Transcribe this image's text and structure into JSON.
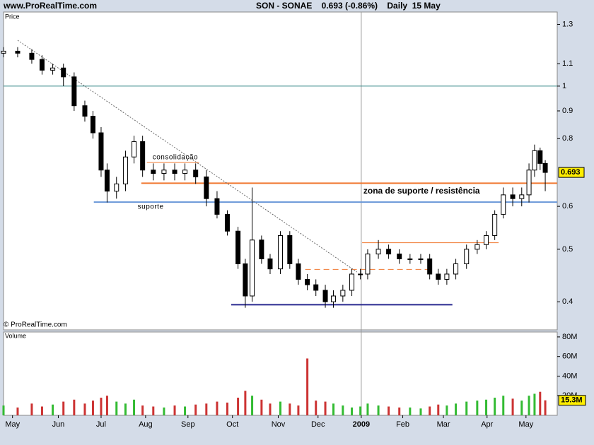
{
  "chart_data": {
    "type": "candlestick",
    "site": "www.ProRealTime.com",
    "title": "SON - SONAE    0.693 (-0.86%)    Daily  15 May",
    "price_label": "Price",
    "copyright": "© ProRealTime.com",
    "volume_label": "Volume",
    "log_scale": true,
    "xlim": [
      -0.21,
      12.73
    ],
    "xticks": [
      {
        "value": 0,
        "label": "May"
      },
      {
        "value": 1.07,
        "label": "Jun"
      },
      {
        "value": 2.07,
        "label": "Jul"
      },
      {
        "value": 3.11,
        "label": "Aug"
      },
      {
        "value": 4.1,
        "label": "Sep"
      },
      {
        "value": 5.14,
        "label": "Oct"
      },
      {
        "value": 6.21,
        "label": "Nov"
      },
      {
        "value": 7.14,
        "label": "Dec"
      },
      {
        "value": 8.15,
        "label": "2009",
        "divider": true
      },
      {
        "value": 9.12,
        "label": "Feb"
      },
      {
        "value": 10.07,
        "label": "Mar"
      },
      {
        "value": 11.09,
        "label": "Apr"
      },
      {
        "value": 12,
        "label": "May"
      }
    ],
    "ylim": [
      0.355,
      1.37
    ],
    "yticks": [
      1.3,
      1.1,
      1,
      0.9,
      0.8,
      0.6,
      0.5,
      0.4
    ],
    "up_color": "#ffffff",
    "down_color": "#000000",
    "x": [
      -0.21,
      0.12,
      0.45,
      0.69,
      0.94,
      1.19,
      1.44,
      1.69,
      1.88,
      2.07,
      2.21,
      2.43,
      2.64,
      2.84,
      3.04,
      3.29,
      3.54,
      3.79,
      4.03,
      4.28,
      4.53,
      4.78,
      5.02,
      5.27,
      5.44,
      5.6,
      5.82,
      6.02,
      6.26,
      6.48,
      6.68,
      6.89,
      7.09,
      7.31,
      7.5,
      7.72,
      7.93,
      8.13,
      8.3,
      8.55,
      8.79,
      9.04,
      9.29,
      9.54,
      9.75,
      9.95,
      10.15,
      10.36,
      10.61,
      10.86,
      11.07,
      11.27,
      11.47,
      11.69,
      11.9,
      12.07,
      12.2,
      12.33,
      12.45
    ],
    "open": [
      1.15,
      1.16,
      1.15,
      1.12,
      1.07,
      1.08,
      1.04,
      0.92,
      0.88,
      0.82,
      0.7,
      0.64,
      0.66,
      0.74,
      0.79,
      0.7,
      0.69,
      0.7,
      0.69,
      0.7,
      0.68,
      0.62,
      0.58,
      0.54,
      0.47,
      0.41,
      0.52,
      0.48,
      0.46,
      0.53,
      0.47,
      0.44,
      0.43,
      0.42,
      0.4,
      0.41,
      0.42,
      0.45,
      0.45,
      0.49,
      0.5,
      0.49,
      0.48,
      0.48,
      0.48,
      0.45,
      0.44,
      0.45,
      0.47,
      0.5,
      0.51,
      0.53,
      0.58,
      0.63,
      0.62,
      0.63,
      0.7,
      0.76,
      0.72
    ],
    "high": [
      1.18,
      1.18,
      1.17,
      1.14,
      1.1,
      1.1,
      1.06,
      0.94,
      0.9,
      0.84,
      0.72,
      0.68,
      0.76,
      0.81,
      0.81,
      0.72,
      0.72,
      0.72,
      0.72,
      0.72,
      0.7,
      0.64,
      0.59,
      0.55,
      0.48,
      0.65,
      0.53,
      0.49,
      0.54,
      0.54,
      0.48,
      0.45,
      0.44,
      0.43,
      0.42,
      0.43,
      0.46,
      0.46,
      0.5,
      0.52,
      0.51,
      0.5,
      0.49,
      0.49,
      0.49,
      0.46,
      0.46,
      0.48,
      0.51,
      0.52,
      0.54,
      0.59,
      0.65,
      0.65,
      0.65,
      0.72,
      0.78,
      0.77,
      0.73
    ],
    "low": [
      1.13,
      1.13,
      1.1,
      1.05,
      1.05,
      1.0,
      0.9,
      0.86,
      0.8,
      0.68,
      0.61,
      0.62,
      0.64,
      0.72,
      0.68,
      0.67,
      0.67,
      0.67,
      0.67,
      0.66,
      0.6,
      0.57,
      0.53,
      0.46,
      0.39,
      0.4,
      0.47,
      0.45,
      0.45,
      0.46,
      0.43,
      0.42,
      0.41,
      0.39,
      0.39,
      0.4,
      0.41,
      0.44,
      0.44,
      0.48,
      0.48,
      0.47,
      0.47,
      0.47,
      0.44,
      0.43,
      0.43,
      0.44,
      0.46,
      0.49,
      0.5,
      0.52,
      0.57,
      0.6,
      0.6,
      0.61,
      0.68,
      0.7,
      0.64
    ],
    "close": [
      1.16,
      1.15,
      1.12,
      1.07,
      1.08,
      1.04,
      0.92,
      0.88,
      0.82,
      0.7,
      0.64,
      0.66,
      0.74,
      0.79,
      0.7,
      0.69,
      0.7,
      0.69,
      0.7,
      0.68,
      0.62,
      0.58,
      0.54,
      0.47,
      0.41,
      0.52,
      0.48,
      0.46,
      0.53,
      0.47,
      0.44,
      0.43,
      0.42,
      0.4,
      0.41,
      0.42,
      0.45,
      0.45,
      0.49,
      0.5,
      0.49,
      0.48,
      0.48,
      0.48,
      0.45,
      0.44,
      0.45,
      0.47,
      0.5,
      0.51,
      0.53,
      0.58,
      0.63,
      0.62,
      0.63,
      0.7,
      0.76,
      0.72,
      0.693
    ],
    "volume": [
      10000000,
      8000000,
      12000000,
      9000000,
      11000000,
      14000000,
      16000000,
      12000000,
      15000000,
      18000000,
      20000000,
      14000000,
      12000000,
      16000000,
      10000000,
      9000000,
      8000000,
      10000000,
      9000000,
      11000000,
      12000000,
      14000000,
      13000000,
      18000000,
      25000000,
      20000000,
      16000000,
      12000000,
      14000000,
      12000000,
      10000000,
      58000000,
      15000000,
      14000000,
      12000000,
      10000000,
      8000000,
      9000000,
      12000000,
      10000000,
      9000000,
      8000000,
      8000000,
      7000000,
      9000000,
      11000000,
      10000000,
      12000000,
      14000000,
      15000000,
      16000000,
      18000000,
      20000000,
      17000000,
      15000000,
      20000000,
      22000000,
      24000000,
      15300000
    ],
    "volume_last_label": "15.3M",
    "volume_up_color": "#33bb33",
    "volume_down_color": "#cc3333",
    "vlim": [
      0,
      85000000
    ],
    "vticks": [
      {
        "value": 80000000,
        "label": "80M"
      },
      {
        "value": 60000000,
        "label": "60M"
      },
      {
        "value": 40000000,
        "label": "40M"
      },
      {
        "value": 20000000,
        "label": "20M"
      }
    ],
    "lines": [
      {
        "value": 1,
        "color": "#3a8a8a"
      },
      {
        "value": 0.723,
        "from": 3.14,
        "to": 4.36,
        "color": "#f07830",
        "label": "consolidação",
        "label_color": "#f07830"
      },
      {
        "value": 0.662,
        "from": 3.01,
        "to": 12.73,
        "color": "#f07830",
        "width": 2
      },
      {
        "value": 0.611,
        "from": 1.9,
        "to": 12.73,
        "color": "#6a98d8",
        "width": 2,
        "label": "suporte",
        "label_color": "#6a98d8"
      },
      {
        "value": 0.514,
        "from": 8.17,
        "to": 11.36,
        "color": "#f07830"
      },
      {
        "value": 0.459,
        "from": 6.84,
        "to": 9.78,
        "color": "#f07830",
        "dash": true
      },
      {
        "value": 0.395,
        "from": 5.11,
        "to": 10.28,
        "color": "#2a2a90",
        "width": 2
      }
    ],
    "zone_label": {
      "text": "zona de suporte / resistência",
      "value": 0.64,
      "x": 8.2,
      "color": "#ee66bb"
    },
    "trendline": {
      "x": [
        0.12,
        8.05
      ],
      "y": [
        1.215,
        0.454
      ]
    }
  }
}
